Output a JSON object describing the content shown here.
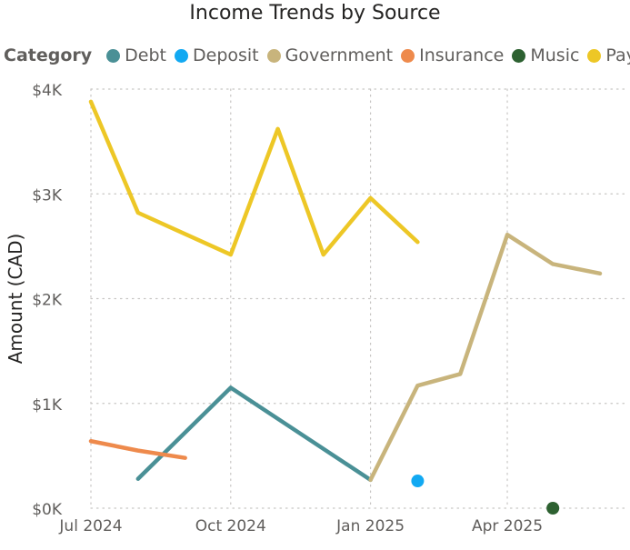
{
  "chart_data": {
    "type": "line",
    "title": "Income Trends by Source",
    "xlabel": "",
    "ylabel": "Amount (CAD)",
    "legend_title": "Category",
    "legend_position": "top-left",
    "grid": true,
    "ylim": [
      0,
      4000
    ],
    "xlim": [
      "2024-07-01",
      "2025-06-01"
    ],
    "x_ticks": [
      "2024-07-01",
      "2024-10-01",
      "2025-01-01",
      "2025-04-01"
    ],
    "x_tick_labels": [
      "Jul 2024",
      "Oct 2024",
      "Jan 2025",
      "Apr 2025"
    ],
    "y_ticks": [
      0,
      1000,
      2000,
      3000,
      4000
    ],
    "y_tick_labels": [
      "$0K",
      "$1K",
      "$2K",
      "$3K",
      "$4K"
    ],
    "series": [
      {
        "name": "Debt",
        "color": "#4A9096",
        "render": "line",
        "points": [
          [
            "2024-08-01",
            280
          ],
          [
            "2024-10-01",
            1150
          ],
          [
            "2025-01-01",
            270
          ]
        ]
      },
      {
        "name": "Deposit",
        "color": "#12A9F2",
        "render": "point",
        "points": [
          [
            "2025-02-01",
            260
          ]
        ]
      },
      {
        "name": "Government",
        "color": "#C8B47C",
        "render": "line",
        "points": [
          [
            "2025-01-01",
            270
          ],
          [
            "2025-02-01",
            1170
          ],
          [
            "2025-03-01",
            1280
          ],
          [
            "2025-04-01",
            2610
          ],
          [
            "2025-05-01",
            2330
          ],
          [
            "2025-06-01",
            2240
          ]
        ]
      },
      {
        "name": "Insurance",
        "color": "#EE8A4C",
        "render": "line",
        "points": [
          [
            "2024-07-01",
            640
          ],
          [
            "2024-08-01",
            550
          ],
          [
            "2024-09-01",
            480
          ]
        ]
      },
      {
        "name": "Music",
        "color": "#2D6131",
        "render": "point",
        "points": [
          [
            "2025-05-01",
            0
          ]
        ]
      },
      {
        "name": "Pay",
        "color": "#EDC726",
        "render": "line",
        "points": [
          [
            "2024-07-01",
            3880
          ],
          [
            "2024-08-01",
            2820
          ],
          [
            "2024-10-01",
            2420
          ],
          [
            "2024-11-01",
            3620
          ],
          [
            "2024-12-01",
            2420
          ],
          [
            "2025-01-01",
            2960
          ],
          [
            "2025-02-01",
            2540
          ]
        ]
      }
    ]
  }
}
